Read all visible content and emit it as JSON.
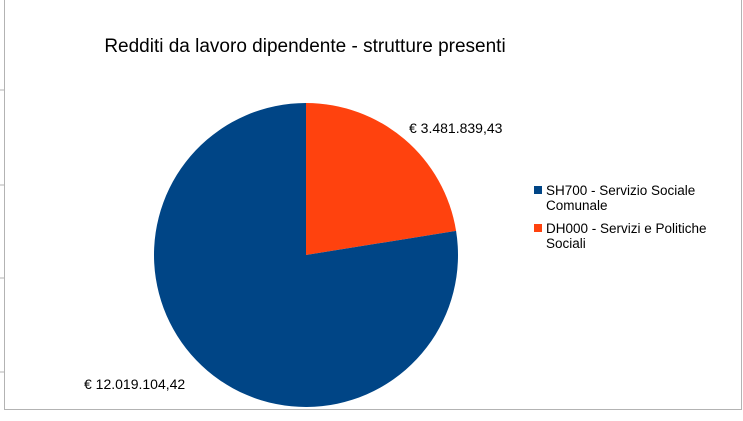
{
  "chart_data": {
    "type": "pie",
    "title": "Redditi da lavoro dipendente - strutture presenti",
    "categories": [
      "SH700 - Servizio Sociale Comunale",
      "DH000 - Servizi e Politiche Sociali"
    ],
    "values": [
      12019104.42,
      3481839.43
    ],
    "data_labels": [
      "€ 12.019.104,42",
      "€ 3.481.839,43"
    ],
    "colors": [
      "#004586",
      "#ff420e"
    ],
    "legend": "right",
    "start_angle": "12 o'clock, clockwise (DH000 first)"
  }
}
